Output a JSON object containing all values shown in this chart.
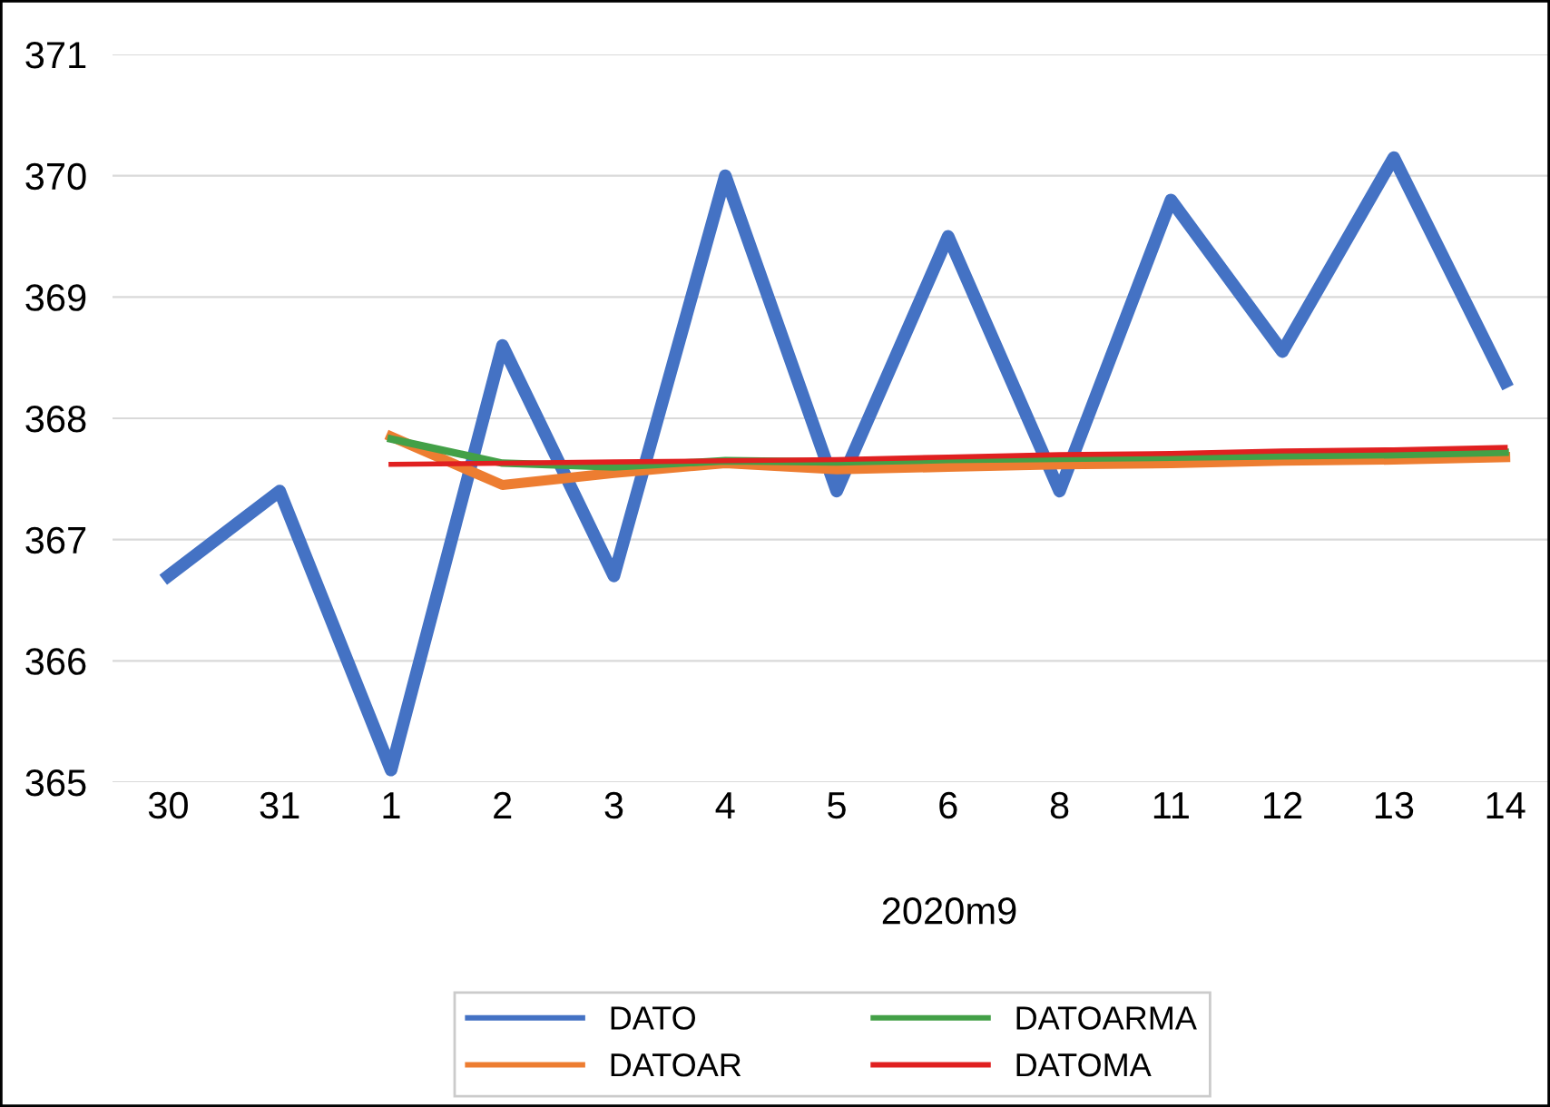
{
  "chart_data": {
    "type": "line",
    "xlabel": "2020m9",
    "categories": [
      "30",
      "31",
      "1",
      "2",
      "3",
      "4",
      "5",
      "6",
      "8",
      "11",
      "12",
      "13",
      "14"
    ],
    "series": [
      {
        "name": "DATO",
        "color": "#4472c4",
        "values": [
          366.7,
          367.4,
          365.1,
          368.6,
          366.7,
          370.0,
          367.4,
          369.5,
          367.4,
          369.8,
          368.55,
          370.15,
          368.3
        ]
      },
      {
        "name": "DATOAR",
        "color": "#ed7d31",
        "values": [
          null,
          null,
          367.85,
          367.45,
          367.55,
          367.63,
          367.58,
          367.6,
          367.62,
          367.63,
          367.65,
          367.66,
          367.68
        ]
      },
      {
        "name": "DATOARMA",
        "color": "#43a047",
        "values": [
          null,
          null,
          367.83,
          367.63,
          367.6,
          367.65,
          367.64,
          367.66,
          367.67,
          367.68,
          367.69,
          367.7,
          367.72
        ]
      },
      {
        "name": "DATOMA",
        "color": "#e02020",
        "values": [
          null,
          null,
          367.62,
          367.63,
          367.64,
          367.65,
          367.66,
          367.68,
          367.7,
          367.71,
          367.73,
          367.74,
          367.76
        ]
      }
    ],
    "ylim": [
      365,
      371
    ],
    "yticks": [
      365,
      366,
      367,
      368,
      369,
      370,
      371
    ],
    "grid": "y",
    "legend": "bottom",
    "marker": "none",
    "line_style": "solid"
  }
}
